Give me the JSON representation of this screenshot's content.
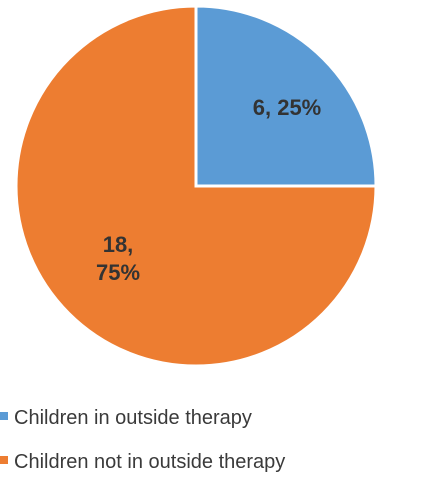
{
  "chart_data": {
    "type": "pie",
    "title": "",
    "start_angle_deg": 90,
    "direction": "clockwise",
    "legend_position": "bottom-left",
    "slices": [
      {
        "name": "Children in outside therapy",
        "value": 6,
        "percent": 25,
        "label_lines": [
          "6, 25%"
        ],
        "color": "#5b9bd5"
      },
      {
        "name": "Children not in outside therapy",
        "value": 18,
        "percent": 75,
        "label_lines": [
          "18,",
          "75%"
        ],
        "color": "#ed7d31"
      }
    ],
    "legend": [
      {
        "label": "Children in outside therapy",
        "color": "#5b9bd5"
      },
      {
        "label": "Children not in outside therapy",
        "color": "#ed7d31"
      }
    ]
  }
}
